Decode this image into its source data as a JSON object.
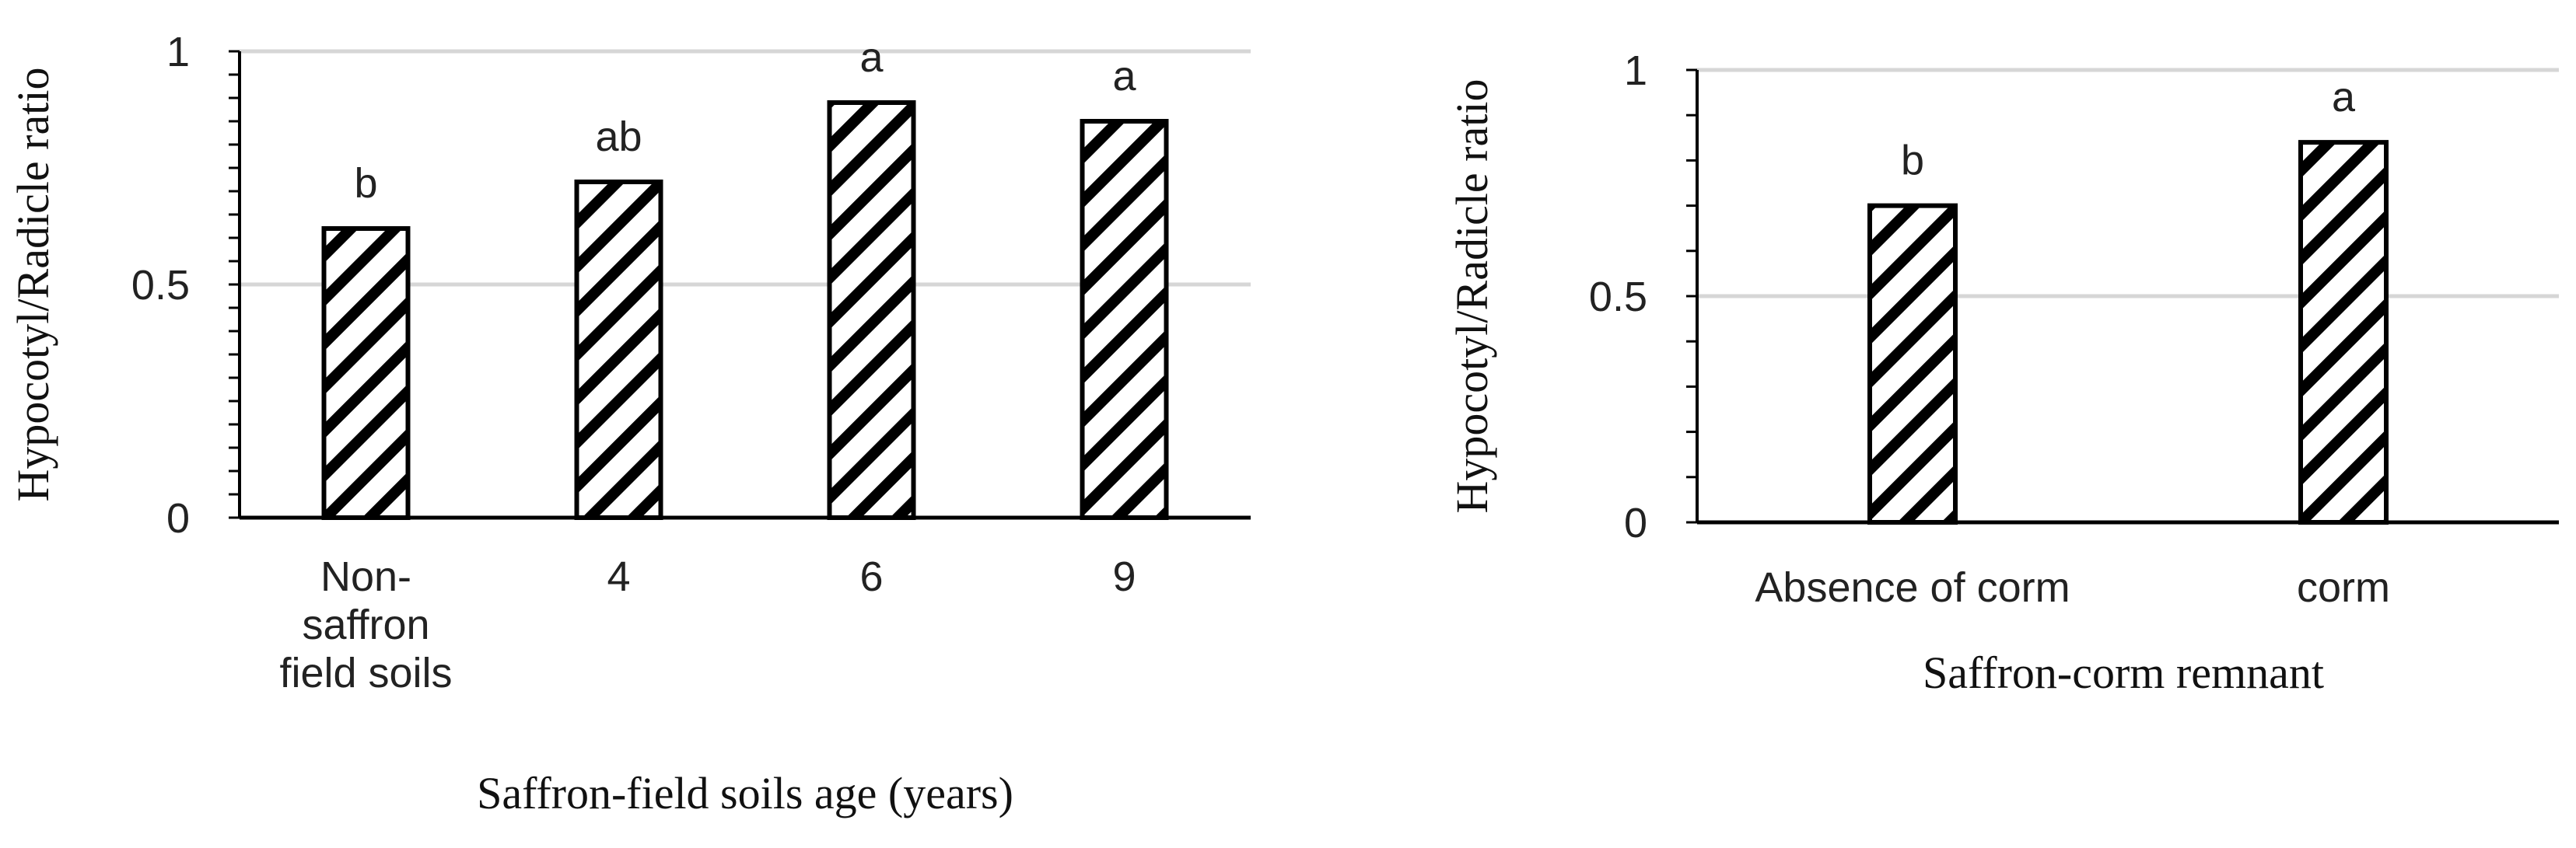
{
  "chart_data": [
    {
      "type": "bar",
      "ylabel": "Hypocotyl/Radicle ratio",
      "xlabel": "Saffron-field soils age (years)",
      "categories": [
        [
          "Non-",
          "saffron",
          "field soils"
        ],
        [
          "4"
        ],
        [
          "6"
        ],
        [
          "9"
        ]
      ],
      "values": [
        0.62,
        0.72,
        0.89,
        0.85
      ],
      "significance_letters": [
        "b",
        "ab",
        "a",
        "a"
      ],
      "ylim": [
        0,
        1
      ],
      "yticks": [
        0,
        0.5,
        1
      ],
      "ytick_labels": [
        "0",
        "0.5",
        "1"
      ],
      "grid": true,
      "bar_fill": "diagonal-hatch",
      "bar_color": "#000000"
    },
    {
      "type": "bar",
      "ylabel": "Hypocotyl/Radicle ratio",
      "xlabel": "Saffron-corm remnant",
      "categories": [
        [
          "Absence of  corm"
        ],
        [
          "corm"
        ]
      ],
      "values": [
        0.7,
        0.84
      ],
      "significance_letters": [
        "b",
        "a"
      ],
      "ylim": [
        0,
        1
      ],
      "yticks": [
        0,
        0.5,
        1
      ],
      "ytick_labels": [
        "0",
        "0.5",
        "1"
      ],
      "grid": true,
      "bar_fill": "diagonal-hatch",
      "bar_color": "#000000"
    }
  ]
}
